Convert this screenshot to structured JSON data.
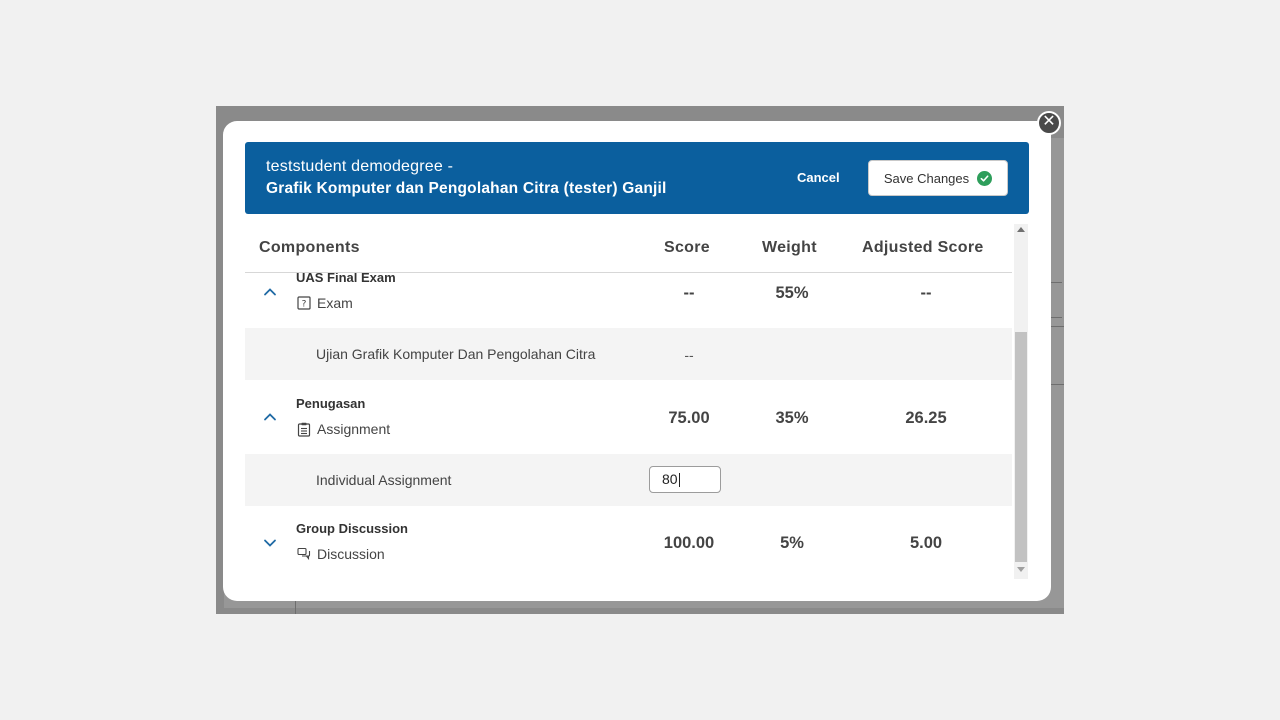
{
  "modal": {
    "student_name": "teststudent demodegree -",
    "course_name": "Grafik Komputer dan Pengolahan Citra (tester) Ganjil",
    "cancel_label": "Cancel",
    "save_label": "Save Changes",
    "close_label": "✕"
  },
  "columns": {
    "components": "Components",
    "score": "Score",
    "weight": "Weight",
    "adjusted": "Adjusted Score"
  },
  "rows": {
    "uas": {
      "name": "UAS Final Exam",
      "type": "Exam",
      "score": "--",
      "weight": "55%",
      "adjusted": "--",
      "expanded": true,
      "icon": "question-box-icon",
      "child": {
        "label": "Ujian Grafik Komputer Dan Pengolahan Citra",
        "score": "--"
      }
    },
    "penugasan": {
      "name": "Penugasan",
      "type": "Assignment",
      "score": "75.00",
      "weight": "35%",
      "adjusted": "26.25",
      "expanded": true,
      "icon": "clipboard-icon",
      "child": {
        "label": "Individual Assignment",
        "input_value": "80"
      }
    },
    "group": {
      "name": "Group Discussion",
      "type": "Discussion",
      "score": "100.00",
      "weight": "5%",
      "adjusted": "5.00",
      "expanded": false,
      "icon": "chat-bubbles-icon"
    }
  },
  "colors": {
    "header_bg": "#0b5f9e",
    "accent": "#0b5f9e",
    "success": "#2e9e5b",
    "child_row_bg": "#f4f4f4"
  }
}
